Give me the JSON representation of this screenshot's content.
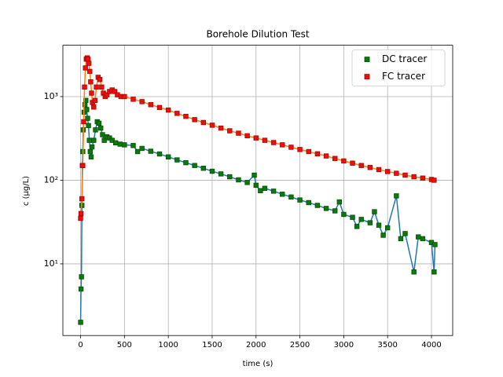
{
  "chart_data": {
    "type": "scatter",
    "title": "Borehole Dilution Test",
    "xlabel": "time (s)",
    "ylabel": "c (µg/L)",
    "xlim": [
      -202,
      4242
    ],
    "xticks": [
      0,
      500,
      1000,
      1500,
      2000,
      2500,
      3000,
      3500,
      4000
    ],
    "ylim": [
      1.39,
      4110
    ],
    "yticks": [
      {
        "value": 10,
        "label": "10¹"
      },
      {
        "value": 100,
        "label": "10²"
      },
      {
        "value": 1000,
        "label": "10³"
      }
    ],
    "log_y": true,
    "grid": true,
    "legend": "upper right",
    "series": [
      {
        "name": "DC tracer",
        "color": "#0a7a0a",
        "edge_color": "#045004",
        "line_color": "#1f77b4",
        "x": [
          0,
          5,
          10,
          15,
          20,
          25,
          30,
          40,
          50,
          60,
          70,
          80,
          90,
          100,
          110,
          120,
          130,
          150,
          170,
          190,
          210,
          230,
          250,
          270,
          300,
          330,
          360,
          400,
          450,
          500,
          600,
          650,
          700,
          800,
          900,
          1000,
          1100,
          1200,
          1300,
          1400,
          1500,
          1600,
          1700,
          1800,
          1900,
          1980,
          2000,
          2050,
          2100,
          2200,
          2300,
          2400,
          2500,
          2600,
          2700,
          2800,
          2900,
          2950,
          3000,
          3100,
          3150,
          3200,
          3300,
          3350,
          3400,
          3450,
          3500,
          3600,
          3650,
          3700,
          3800,
          3850,
          3900,
          4000,
          4030,
          4040
        ],
        "values": [
          2,
          5,
          7,
          50,
          150,
          220,
          400,
          650,
          800,
          900,
          700,
          550,
          450,
          300,
          220,
          190,
          250,
          300,
          400,
          500,
          480,
          420,
          350,
          300,
          330,
          320,
          300,
          280,
          270,
          265,
          260,
          220,
          240,
          222,
          206,
          190,
          175,
          162,
          150,
          139,
          128,
          119,
          110,
          101,
          94,
          115,
          87,
          75,
          80,
          74,
          68,
          63,
          58,
          54,
          50,
          46,
          43,
          55,
          39,
          36,
          28,
          34,
          31,
          42,
          29,
          22,
          27,
          65,
          20,
          23,
          8,
          21,
          20,
          18,
          8,
          17
        ]
      },
      {
        "name": "FC tracer",
        "color": "#e8120c",
        "edge_color": "#b00000",
        "line_color": "#ff7f0e",
        "x": [
          0,
          5,
          15,
          25,
          35,
          45,
          55,
          65,
          75,
          85,
          95,
          105,
          115,
          125,
          135,
          150,
          165,
          180,
          200,
          220,
          240,
          260,
          280,
          300,
          330,
          360,
          390,
          420,
          460,
          500,
          600,
          700,
          800,
          900,
          1000,
          1100,
          1200,
          1300,
          1400,
          1500,
          1600,
          1700,
          1800,
          1900,
          2000,
          2100,
          2200,
          2300,
          2400,
          2500,
          2600,
          2700,
          2800,
          2900,
          3000,
          3100,
          3200,
          3300,
          3400,
          3500,
          3600,
          3700,
          3800,
          3900,
          4000,
          4030
        ],
        "values": [
          35,
          40,
          60,
          150,
          500,
          1300,
          2200,
          2800,
          2900,
          2800,
          2500,
          2000,
          1500,
          1100,
          850,
          750,
          900,
          1300,
          1700,
          1600,
          1300,
          1100,
          1000,
          1050,
          1150,
          1200,
          1150,
          1050,
          1000,
          1000,
          930,
          870,
          800,
          740,
          690,
          630,
          580,
          530,
          490,
          455,
          420,
          390,
          365,
          340,
          320,
          300,
          282,
          265,
          248,
          233,
          220,
          207,
          195,
          182,
          170,
          160,
          150,
          142,
          134,
          127,
          121,
          115,
          110,
          106,
          102,
          100
        ]
      }
    ]
  }
}
